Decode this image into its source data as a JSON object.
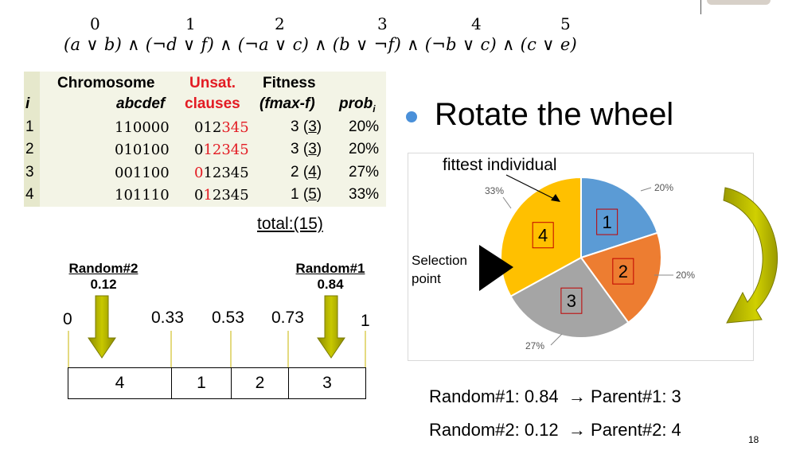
{
  "formula": {
    "indices": [
      "0",
      "1",
      "2",
      "3",
      "4",
      "5"
    ],
    "clauses": [
      "(a ∨ b)",
      "(¬d ∨ f)",
      "(¬a ∨ c)",
      "(b ∨ ¬f)",
      "(¬b ∨ c)",
      "(c ∨ e)"
    ],
    "joiner": " ∧ "
  },
  "table": {
    "headers": {
      "i": "i",
      "chromosome": "Chromosome",
      "chromosome_sub": "abcdef",
      "unsat": "Unsat.",
      "unsat_sub": "clauses",
      "fitness": "Fitness",
      "fitness_sub": "(fmax-f)",
      "prob": "prob",
      "prob_sub": "i"
    },
    "rows": [
      {
        "i": "1",
        "chrom": "110000",
        "unsat_black": "012",
        "unsat_red": "345",
        "unsat_black2": "",
        "fit": "3",
        "fit_paren": "3",
        "prob": "20%"
      },
      {
        "i": "2",
        "chrom": "010100",
        "unsat_black": "0",
        "unsat_red": "12345",
        "unsat_black2": "",
        "fit": "3",
        "fit_paren": "3",
        "prob": "20%"
      },
      {
        "i": "3",
        "chrom": "001100",
        "unsat_black": "",
        "unsat_red": "0",
        "unsat_black2": "12345",
        "fit": "2",
        "fit_paren": "4",
        "prob": "27%"
      },
      {
        "i": "4",
        "chrom": "101110",
        "unsat_black": "0",
        "unsat_red": "1",
        "unsat_black2": "2345",
        "fit": "1",
        "fit_paren": "5",
        "prob": "33%"
      }
    ],
    "total": "total:(15)"
  },
  "numberline": {
    "random2": {
      "label": "Random#2",
      "value": "0.12"
    },
    "random1": {
      "label": "Random#1",
      "value": "0.84"
    },
    "ticks": [
      "0",
      "0.33",
      "0.53",
      "0.73",
      "1"
    ],
    "segments": [
      "4",
      "1",
      "2",
      "3"
    ]
  },
  "bullet": "Rotate the wheel",
  "chart_data": {
    "type": "pie",
    "slices": [
      {
        "label": "1",
        "value": 20,
        "pct": "20%",
        "color": "#5b9bd5"
      },
      {
        "label": "2",
        "value": 20,
        "pct": "20%",
        "color": "#ed7d31"
      },
      {
        "label": "3",
        "value": 27,
        "pct": "27%",
        "color": "#a5a5a5"
      },
      {
        "label": "4",
        "value": 33,
        "pct": "33%",
        "color": "#ffc000"
      }
    ],
    "annotation": "fittest individual",
    "selection_label": [
      "Selection",
      "point"
    ]
  },
  "results": [
    {
      "left": "Random#1: 0.84",
      "arrow": "→",
      "right": "Parent#1: 3"
    },
    {
      "left": "Random#2: 0.12",
      "arrow": "→",
      "right": "Parent#2: 4"
    }
  ],
  "page_number": "18"
}
